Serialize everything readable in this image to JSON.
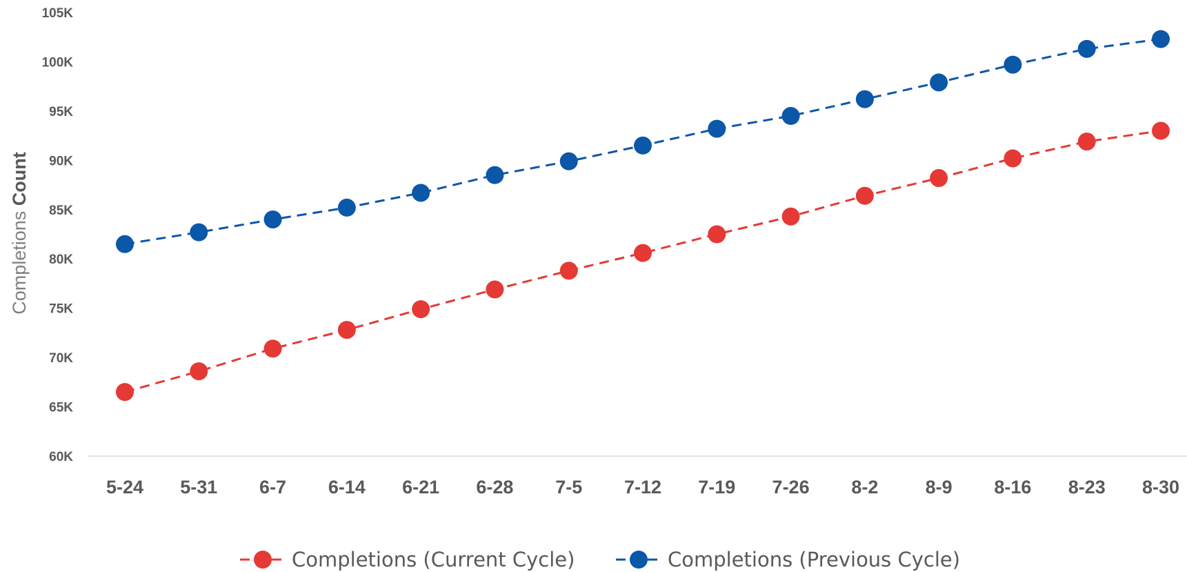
{
  "chart_data": {
    "type": "line",
    "categories": [
      "5-24",
      "5-31",
      "6-7",
      "6-14",
      "6-21",
      "6-28",
      "7-5",
      "7-12",
      "7-19",
      "7-26",
      "8-2",
      "8-9",
      "8-16",
      "8-23",
      "8-30"
    ],
    "series": [
      {
        "name": "Completions (Current Cycle)",
        "color": "#e53935",
        "line_style": "dashed",
        "marker": "circle",
        "values": [
          66500,
          68600,
          70900,
          72800,
          74900,
          76900,
          78800,
          80600,
          82500,
          84300,
          86400,
          88200,
          90200,
          91900,
          93000
        ]
      },
      {
        "name": "Completions (Previous Cycle)",
        "color": "#0b57a8",
        "line_style": "dashed",
        "marker": "circle",
        "values": [
          81500,
          82700,
          84000,
          85200,
          86700,
          88500,
          89900,
          91500,
          93200,
          94500,
          96200,
          97900,
          99700,
          101300,
          102300
        ]
      }
    ],
    "ylabel_light": "Completions",
    "ylabel_bold": "Count",
    "y_ticks": [
      "60K",
      "65K",
      "70K",
      "75K",
      "80K",
      "85K",
      "90K",
      "95K",
      "100K",
      "105K"
    ],
    "ylim": [
      60000,
      105000
    ],
    "ytick_step": 5000,
    "grid": "baseline-only",
    "legend_position": "bottom-center"
  }
}
